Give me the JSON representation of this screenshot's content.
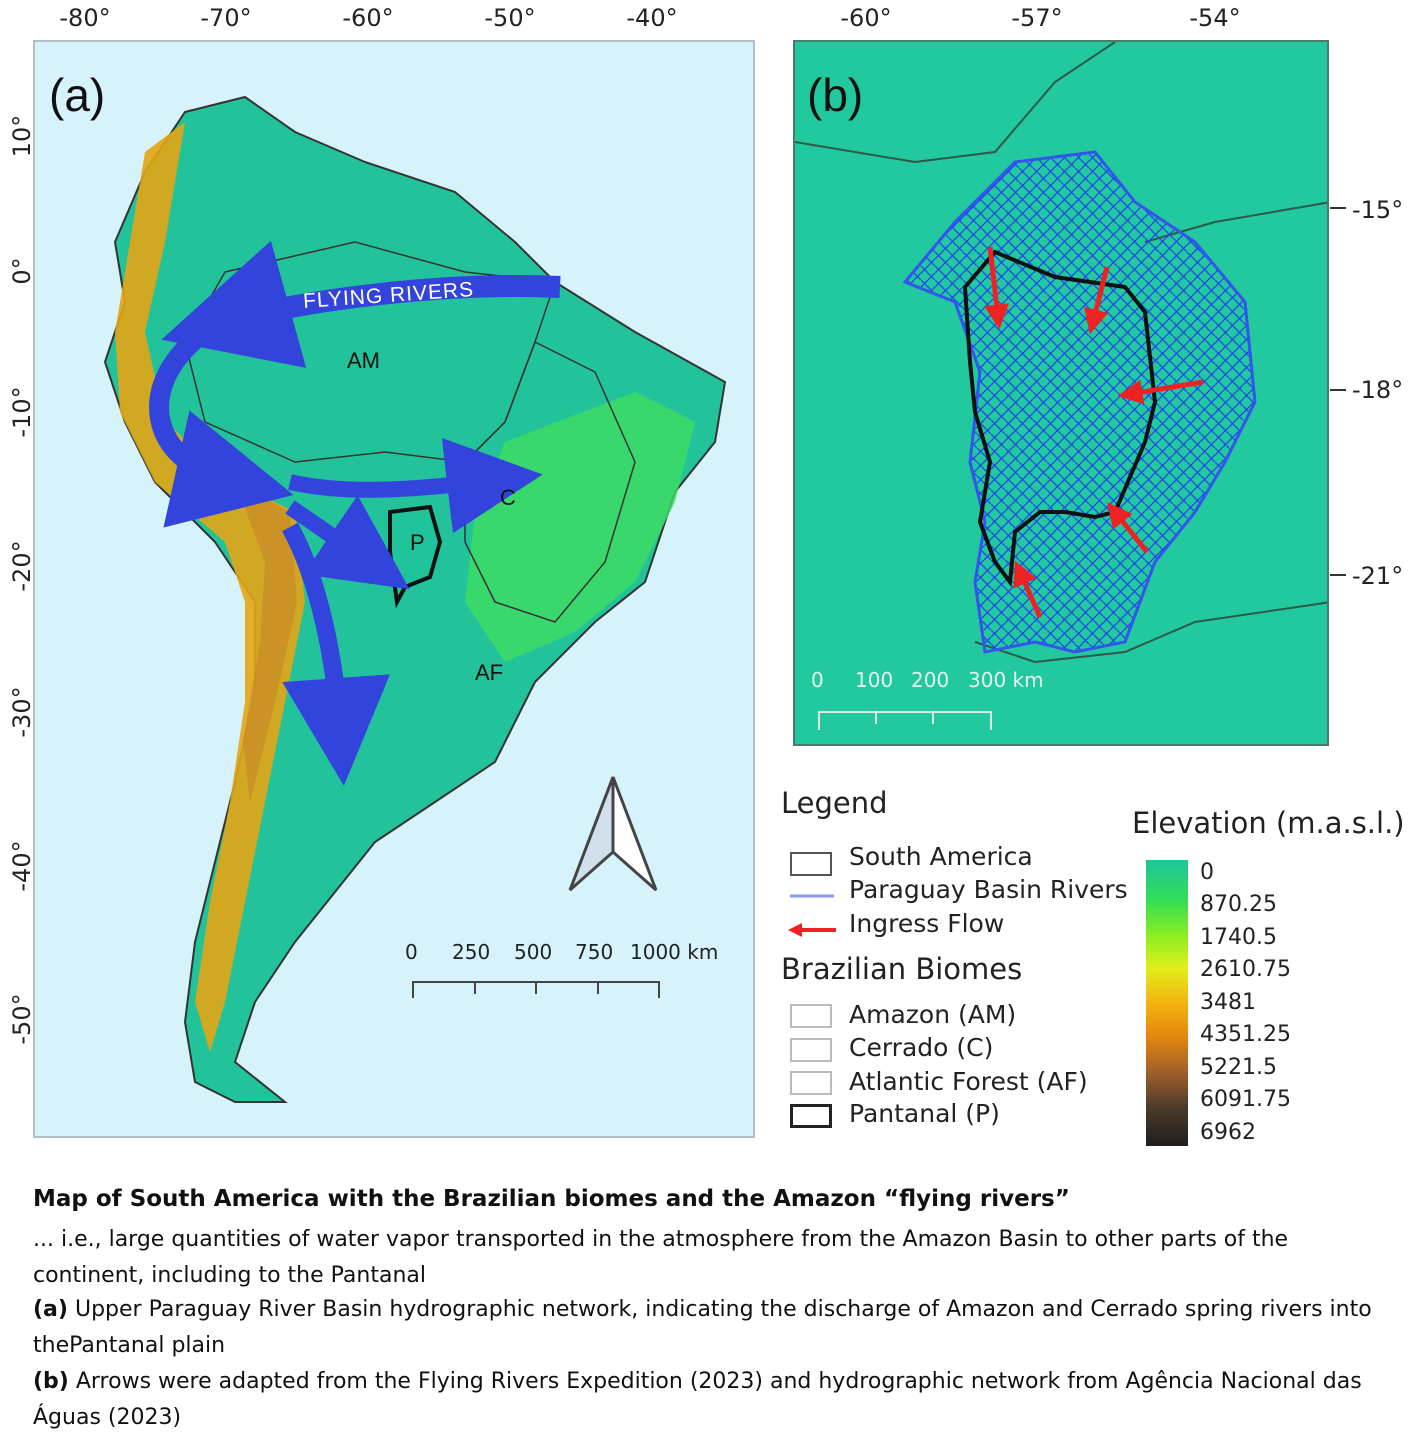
{
  "panel_a": {
    "label": "(a)",
    "lon_ticks": [
      "-80°",
      "-70°",
      "-60°",
      "-50°",
      "-40°"
    ],
    "lat_ticks": [
      "10°",
      "0°",
      "-10°",
      "-20°",
      "-30°",
      "-40°",
      "-50°"
    ],
    "flow_label": "FLYING RIVERS",
    "biomes": [
      "AM",
      "C",
      "P",
      "AF"
    ],
    "scale": {
      "ticks": [
        "0",
        "250",
        "500",
        "750",
        "1000 km"
      ]
    }
  },
  "panel_b": {
    "label": "(b)",
    "lon_ticks": [
      "-60°",
      "-57°",
      "-54°"
    ],
    "lat_ticks": [
      "-15°",
      "-18°",
      "-21°"
    ],
    "scale": {
      "ticks": [
        "0",
        "100",
        "200",
        "300 km"
      ]
    }
  },
  "legend": {
    "title": "Legend",
    "items": [
      {
        "label": "South America",
        "symbol": "outline-box"
      },
      {
        "label": "Paraguay Basin Rivers",
        "symbol": "blue-line"
      },
      {
        "label": "Ingress Flow",
        "symbol": "red-arrow"
      }
    ],
    "biomes_title": "Brazilian Biomes",
    "biome_items": [
      {
        "label": "Amazon (AM)",
        "symbol": "light-box"
      },
      {
        "label": "Cerrado (C)",
        "symbol": "light-box"
      },
      {
        "label": "Atlantic Forest (AF)",
        "symbol": "light-box"
      },
      {
        "label": "Pantanal (P)",
        "symbol": "bold-box"
      }
    ]
  },
  "elevation": {
    "title": "Elevation (m.a.s.l.)",
    "labels": [
      "0",
      "870.25",
      "1740.5",
      "2610.75",
      "3481",
      "4351.25",
      "5221.5",
      "6091.75",
      "6962"
    ]
  },
  "caption": {
    "title": "Map of South America with the Brazilian biomes and the Amazon “flying rivers”",
    "intro": "... i.e., large quantities of water vapor transported in the atmosphere from the Amazon Basin to other parts of the continent, including to the Pantanal",
    "a_label": "(a)",
    "a_text": " Upper Paraguay River Basin hydrographic network, indicating the discharge of Amazon and Cerrado spring rivers into thePantanal plain",
    "b_label": "(b)",
    "b_text": " Arrows were adapted from the Flying Rivers Expedition (2023) and hydrographic network from Agência Nacional das Águas (2023)"
  },
  "colors": {
    "ocean": "#d6f3fb",
    "lowland": "#1fc49a",
    "andes": "#e2a012",
    "flying_river_arrow": "#3344dd",
    "rivers": "#2244ee",
    "ingress_arrow": "#ee2222"
  }
}
